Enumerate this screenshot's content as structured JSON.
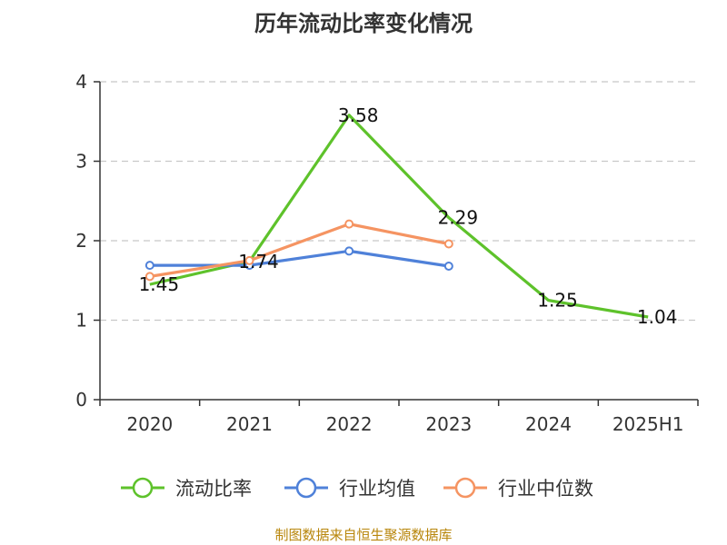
{
  "chart_data": {
    "type": "line",
    "title": "历年流动比率变化情况",
    "categories": [
      "2020",
      "2021",
      "2022",
      "2023",
      "2024",
      "2025H1"
    ],
    "ylim": [
      0,
      4
    ],
    "yticks": [
      "0",
      "1",
      "2",
      "3",
      "4"
    ],
    "grid": true,
    "legend_position": "bottom",
    "series": [
      {
        "name": "流动比率",
        "color": "#5ec22b",
        "values": [
          1.45,
          1.74,
          3.58,
          2.29,
          1.25,
          1.04
        ],
        "labels": [
          "1.45",
          "1.74",
          "3.58",
          "2.29",
          "1.25",
          "1.04"
        ]
      },
      {
        "name": "行业均值",
        "color": "#4f81d9",
        "values": [
          1.69,
          1.69,
          1.87,
          1.68,
          null,
          null
        ]
      },
      {
        "name": "行业中位数",
        "color": "#f59462",
        "values": [
          1.55,
          1.75,
          2.21,
          1.96,
          null,
          null
        ]
      }
    ]
  },
  "source": "制图数据来自恒生聚源数据库"
}
